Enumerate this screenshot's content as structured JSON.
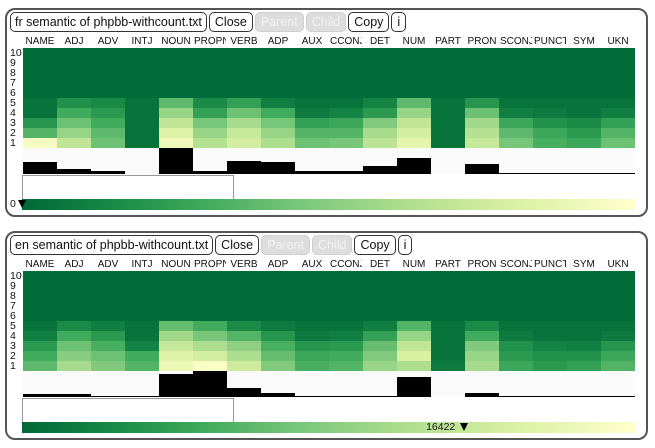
{
  "columns": [
    "NAME",
    "ADJ",
    "ADV",
    "INTJ",
    "NOUN",
    "PROPN",
    "VERB",
    "ADP",
    "AUX",
    "CCONJ",
    "DET",
    "NUM",
    "PART",
    "PRON",
    "SCONJ",
    "PUNCT",
    "SYM",
    "UKN"
  ],
  "y_labels": [
    "10",
    "9",
    "8",
    "7",
    "6",
    "5",
    "4",
    "3",
    "2",
    "1"
  ],
  "buttons": {
    "close": "Close",
    "parent": "Parent",
    "child": "Child",
    "copy": "Copy",
    "info": "i"
  },
  "panels": [
    {
      "title": "fr semantic of phpbb-withcount.txt",
      "scale_label": "0",
      "scale_position": 0,
      "heat": [
        [
          0.05,
          0.18,
          0.15,
          0.05,
          0.38,
          0.15,
          0.25,
          0.1,
          0.05,
          0.05,
          0.12,
          0.38,
          0.05,
          0.2,
          0.05,
          0.05,
          0.05,
          0.05
        ],
        [
          0.05,
          0.3,
          0.22,
          0.05,
          0.55,
          0.25,
          0.42,
          0.3,
          0.08,
          0.12,
          0.22,
          0.55,
          0.05,
          0.42,
          0.1,
          0.08,
          0.05,
          0.1
        ],
        [
          0.2,
          0.42,
          0.3,
          0.05,
          0.7,
          0.45,
          0.6,
          0.45,
          0.25,
          0.28,
          0.48,
          0.7,
          0.05,
          0.58,
          0.28,
          0.18,
          0.15,
          0.25
        ],
        [
          0.35,
          0.55,
          0.38,
          0.05,
          0.82,
          0.55,
          0.72,
          0.55,
          0.35,
          0.35,
          0.6,
          0.78,
          0.05,
          0.65,
          0.38,
          0.28,
          0.22,
          0.35
        ],
        [
          0.95,
          0.7,
          0.42,
          0.05,
          0.92,
          0.65,
          0.78,
          0.62,
          0.42,
          0.45,
          0.68,
          0.85,
          0.05,
          0.72,
          0.45,
          0.32,
          0.28,
          0.42
        ]
      ],
      "bars": [
        0.45,
        0.2,
        0.1,
        0,
        1.0,
        0.1,
        0.5,
        0.45,
        0.1,
        0.1,
        0.3,
        0.6,
        0,
        0.4,
        0.05,
        0.05,
        0.05,
        0.05
      ]
    },
    {
      "title": "en semantic of phpbb-withcount.txt",
      "scale_label": "16422",
      "scale_position": 0.72,
      "heat": [
        [
          0.05,
          0.15,
          0.1,
          0.05,
          0.4,
          0.3,
          0.15,
          0.08,
          0.05,
          0.05,
          0.1,
          0.35,
          0.05,
          0.15,
          0.05,
          0.05,
          0.05,
          0.05
        ],
        [
          0.1,
          0.3,
          0.22,
          0.05,
          0.58,
          0.45,
          0.35,
          0.2,
          0.08,
          0.1,
          0.25,
          0.55,
          0.05,
          0.3,
          0.08,
          0.05,
          0.05,
          0.08
        ],
        [
          0.22,
          0.42,
          0.32,
          0.12,
          0.72,
          0.62,
          0.52,
          0.32,
          0.2,
          0.22,
          0.4,
          0.7,
          0.05,
          0.48,
          0.18,
          0.12,
          0.1,
          0.2
        ],
        [
          0.3,
          0.5,
          0.42,
          0.3,
          0.82,
          0.78,
          0.62,
          0.4,
          0.28,
          0.3,
          0.48,
          0.8,
          0.05,
          0.55,
          0.22,
          0.18,
          0.18,
          0.28
        ],
        [
          0.38,
          0.6,
          0.48,
          0.35,
          0.9,
          0.97,
          0.75,
          0.48,
          0.32,
          0.35,
          0.55,
          0.62,
          0.08,
          0.6,
          0.28,
          0.22,
          0.25,
          0.35
        ]
      ],
      "bars": [
        0.1,
        0.1,
        0.05,
        0.05,
        0.9,
        1.0,
        0.35,
        0.15,
        0.05,
        0.05,
        0.05,
        0.75,
        0,
        0.15,
        0.05,
        0.05,
        0.05,
        0.05
      ]
    }
  ]
}
